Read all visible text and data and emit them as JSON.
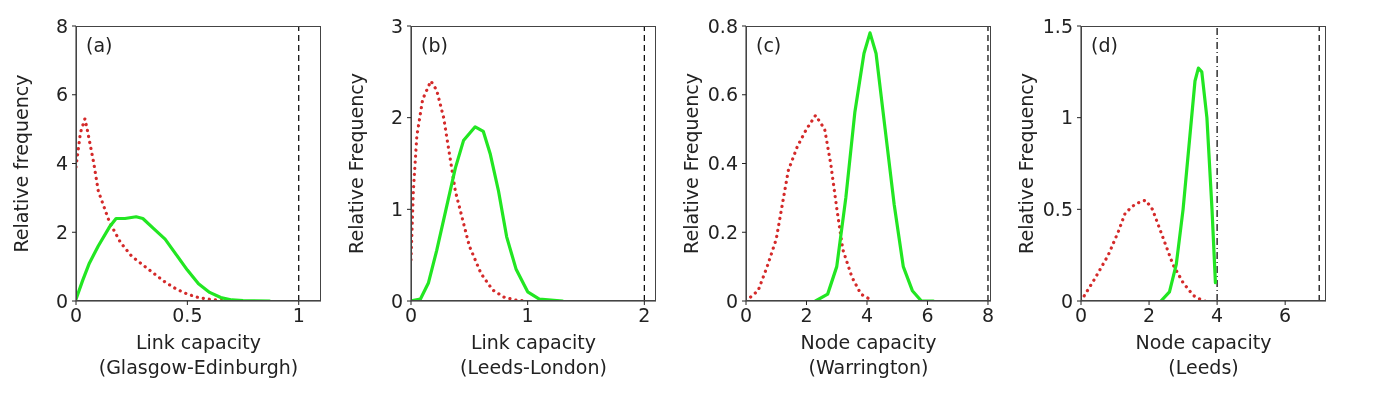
{
  "chart_data": [
    {
      "type": "line",
      "ylabel": "Relative frequency",
      "xlabel": "Link capacity\n(Glasgow-Edinburgh)",
      "annotations": [
        "(a)"
      ],
      "xlim": [
        0,
        1.1
      ],
      "xticks": [
        0,
        0.5,
        1
      ],
      "ylim": [
        0,
        8
      ],
      "yticks": [
        0,
        2,
        4,
        6,
        8
      ],
      "grid": false,
      "marker": "none",
      "ref_lines": [
        {
          "axis": "x",
          "value": 1,
          "color": "#000000",
          "line_style": "dashed"
        }
      ],
      "series": [
        {
          "color": "#d42a2a",
          "line_style": "dotted",
          "x": [
            0,
            0.02,
            0.04,
            0.05,
            0.08,
            0.1,
            0.15,
            0.2,
            0.25,
            0.3,
            0.35,
            0.4,
            0.45,
            0.5,
            0.55,
            0.6,
            0.65,
            0.7,
            0.75
          ],
          "values": [
            3.9,
            4.9,
            5.3,
            5.0,
            4.0,
            3.2,
            2.3,
            1.7,
            1.3,
            1.05,
            0.8,
            0.55,
            0.35,
            0.2,
            0.1,
            0.05,
            0.02,
            0,
            0
          ]
        },
        {
          "color": "#22e622",
          "line_style": "solid",
          "x": [
            0,
            0.03,
            0.06,
            0.1,
            0.15,
            0.18,
            0.22,
            0.27,
            0.3,
            0.35,
            0.4,
            0.45,
            0.5,
            0.55,
            0.6,
            0.65,
            0.7,
            0.75,
            0.87
          ],
          "values": [
            0.05,
            0.6,
            1.1,
            1.6,
            2.15,
            2.4,
            2.4,
            2.45,
            2.4,
            2.1,
            1.8,
            1.35,
            0.9,
            0.5,
            0.25,
            0.1,
            0.03,
            0.01,
            0
          ]
        }
      ]
    },
    {
      "type": "line",
      "ylabel": "Relative Frequency",
      "xlabel": "Link capacity\n(Leeds-London)",
      "annotations": [
        "(b)"
      ],
      "xlim": [
        0,
        2.1
      ],
      "xticks": [
        0,
        1,
        2
      ],
      "ylim": [
        0,
        3
      ],
      "yticks": [
        0,
        1,
        2,
        3
      ],
      "grid": false,
      "marker": "none",
      "ref_lines": [
        {
          "axis": "x",
          "value": 2,
          "color": "#000000",
          "line_style": "dashed"
        }
      ],
      "series": [
        {
          "color": "#d42a2a",
          "line_style": "dotted",
          "x": [
            0,
            0.02,
            0.05,
            0.1,
            0.17,
            0.22,
            0.28,
            0.33,
            0.38,
            0.45,
            0.5,
            0.6,
            0.7,
            0.8,
            0.9,
            1.0
          ],
          "values": [
            0.45,
            1.2,
            1.8,
            2.2,
            2.4,
            2.3,
            2.0,
            1.6,
            1.2,
            0.85,
            0.6,
            0.3,
            0.12,
            0.04,
            0.01,
            0
          ]
        },
        {
          "color": "#22e622",
          "line_style": "solid",
          "x": [
            0,
            0.08,
            0.15,
            0.22,
            0.3,
            0.38,
            0.45,
            0.55,
            0.62,
            0.68,
            0.75,
            0.82,
            0.9,
            1.0,
            1.1,
            1.3
          ],
          "values": [
            0,
            0.02,
            0.2,
            0.55,
            1.0,
            1.45,
            1.75,
            1.9,
            1.85,
            1.6,
            1.2,
            0.7,
            0.35,
            0.1,
            0.02,
            0
          ]
        }
      ]
    },
    {
      "type": "line",
      "ylabel": "Relative Frequency",
      "xlabel": "Node capacity\n(Warrington)",
      "annotations": [
        "(c)"
      ],
      "xlim": [
        0,
        8.1
      ],
      "xticks": [
        0,
        2,
        4,
        6,
        8
      ],
      "ylim": [
        0,
        0.8
      ],
      "yticks": [
        0,
        0.2,
        0.4,
        0.6,
        0.8
      ],
      "grid": false,
      "marker": "none",
      "ref_lines": [
        {
          "axis": "x",
          "value": 8,
          "color": "#000000",
          "line_style": "dashed"
        }
      ],
      "series": [
        {
          "color": "#d42a2a",
          "line_style": "dotted",
          "x": [
            0,
            0.4,
            0.7,
            1.0,
            1.2,
            1.4,
            1.7,
            2.0,
            2.3,
            2.6,
            2.8,
            3.0,
            3.2,
            3.5,
            3.8,
            4.2
          ],
          "values": [
            0,
            0.03,
            0.1,
            0.18,
            0.28,
            0.38,
            0.45,
            0.5,
            0.54,
            0.5,
            0.4,
            0.27,
            0.15,
            0.07,
            0.02,
            0
          ]
        },
        {
          "color": "#22e622",
          "line_style": "solid",
          "x": [
            2.3,
            2.7,
            3.0,
            3.3,
            3.6,
            3.9,
            4.1,
            4.3,
            4.6,
            4.9,
            5.2,
            5.5,
            5.8,
            6.2
          ],
          "values": [
            0,
            0.02,
            0.1,
            0.3,
            0.55,
            0.72,
            0.78,
            0.72,
            0.5,
            0.28,
            0.1,
            0.03,
            0,
            0
          ]
        }
      ]
    },
    {
      "type": "line",
      "ylabel": "Relative Frequency",
      "xlabel": "Node capacity\n(Leeds)",
      "annotations": [
        "(d)"
      ],
      "xlim": [
        0,
        7.2
      ],
      "xticks": [
        0,
        2,
        4,
        6
      ],
      "ylim": [
        0,
        1.5
      ],
      "yticks": [
        0,
        0.5,
        1,
        1.5
      ],
      "grid": false,
      "marker": "none",
      "ref_lines": [
        {
          "axis": "x",
          "value": 4,
          "color": "#000000",
          "line_style": "dashdot"
        },
        {
          "axis": "x",
          "value": 7,
          "color": "#000000",
          "line_style": "dashed"
        }
      ],
      "series": [
        {
          "color": "#d42a2a",
          "line_style": "dotted",
          "x": [
            0,
            0.4,
            0.8,
            1.1,
            1.3,
            1.6,
            1.9,
            2.1,
            2.4,
            2.7,
            3.0,
            3.3,
            3.6,
            3.7
          ],
          "values": [
            0,
            0.12,
            0.25,
            0.38,
            0.48,
            0.53,
            0.55,
            0.5,
            0.35,
            0.2,
            0.1,
            0.03,
            0,
            0
          ]
        },
        {
          "color": "#22e622",
          "line_style": "solid",
          "x": [
            2.35,
            2.6,
            2.8,
            3.0,
            3.2,
            3.35,
            3.45,
            3.55,
            3.7,
            3.85,
            3.95
          ],
          "values": [
            0,
            0.05,
            0.2,
            0.5,
            0.9,
            1.2,
            1.27,
            1.25,
            1.0,
            0.5,
            0.1
          ]
        }
      ]
    }
  ]
}
